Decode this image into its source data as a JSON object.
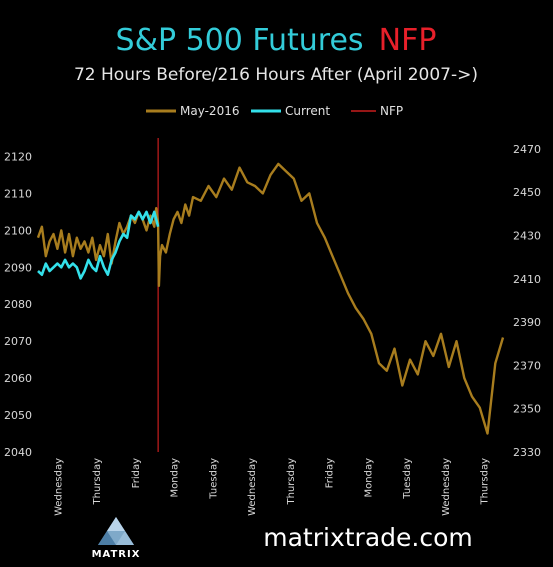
{
  "header": {
    "title_main": "S&P 500 Futures",
    "title_accent": "NFP",
    "subtitle": "72 Hours Before/216 Hours After (April 2007->)"
  },
  "footer": {
    "website": "matrixtrade.com",
    "brand": "MATRIX"
  },
  "colors": {
    "background": "#000000",
    "may2016": "#a87d1e",
    "current": "#33e0ea",
    "nfp": "#c81e1e",
    "title": "#33ccd9",
    "title_accent": "#e8202a"
  },
  "chart_data": {
    "type": "line",
    "title": "S&P 500 Futures NFP",
    "subtitle": "72 Hours Before/216 Hours After (April 2007->)",
    "legend": {
      "placement": "top",
      "entries": [
        "May-2016",
        "Current",
        "NFP"
      ]
    },
    "grid": false,
    "x_range": [
      0,
      12
    ],
    "x_tick_labels": [
      {
        "label": "Wednesday",
        "x": 0.5
      },
      {
        "label": "Thursday",
        "x": 1.5
      },
      {
        "label": "Friday",
        "x": 2.5
      },
      {
        "label": "Monday",
        "x": 3.5
      },
      {
        "label": "Tuesday",
        "x": 4.5
      },
      {
        "label": "Wednesday",
        "x": 5.5
      },
      {
        "label": "Thursday",
        "x": 6.5
      },
      {
        "label": "Friday",
        "x": 7.5
      },
      {
        "label": "Monday",
        "x": 8.5
      },
      {
        "label": "Tuesday",
        "x": 9.5
      },
      {
        "label": "Wednesday",
        "x": 10.5
      },
      {
        "label": "Thursday",
        "x": 11.5
      }
    ],
    "y_left": {
      "range": [
        2040,
        2125
      ],
      "ticks": [
        2040,
        2050,
        2060,
        2070,
        2080,
        2090,
        2100,
        2110,
        2120
      ]
    },
    "y_right": {
      "range": [
        2330,
        2475
      ],
      "ticks": [
        2330,
        2350,
        2370,
        2390,
        2410,
        2430,
        2450,
        2470
      ]
    },
    "nfp_x": 3.1,
    "series": [
      {
        "name": "May-2016",
        "axis": "left",
        "x": [
          0,
          0.1,
          0.2,
          0.3,
          0.4,
          0.5,
          0.6,
          0.7,
          0.8,
          0.9,
          1.0,
          1.1,
          1.2,
          1.3,
          1.4,
          1.5,
          1.6,
          1.7,
          1.8,
          1.9,
          2.0,
          2.1,
          2.2,
          2.3,
          2.4,
          2.5,
          2.6,
          2.7,
          2.8,
          2.9,
          3.0,
          3.05,
          3.1,
          3.12,
          3.15,
          3.2,
          3.3,
          3.4,
          3.5,
          3.6,
          3.7,
          3.8,
          3.9,
          4.0,
          4.2,
          4.4,
          4.6,
          4.8,
          5.0,
          5.2,
          5.4,
          5.6,
          5.8,
          6.0,
          6.2,
          6.4,
          6.6,
          6.8,
          7.0,
          7.2,
          7.4,
          7.6,
          7.8,
          8.0,
          8.2,
          8.4,
          8.6,
          8.8,
          9.0,
          9.2,
          9.4,
          9.6,
          9.8,
          10.0,
          10.2,
          10.4,
          10.6,
          10.8,
          11.0,
          11.2,
          11.4,
          11.6,
          11.8,
          12.0
        ],
        "y": [
          2098,
          2101,
          2093,
          2097,
          2099,
          2095,
          2100,
          2094,
          2099,
          2093,
          2098,
          2095,
          2097,
          2094,
          2098,
          2092,
          2096,
          2093,
          2099,
          2091,
          2097,
          2102,
          2099,
          2101,
          2104,
          2102,
          2105,
          2103,
          2100,
          2104,
          2101,
          2106,
          2102,
          2085,
          2093,
          2096,
          2094,
          2099,
          2103,
          2105,
          2102,
          2107,
          2104,
          2109,
          2108,
          2112,
          2109,
          2114,
          2111,
          2117,
          2113,
          2112,
          2110,
          2115,
          2118,
          2116,
          2114,
          2108,
          2110,
          2102,
          2098,
          2093,
          2088,
          2083,
          2079,
          2076,
          2072,
          2064,
          2062,
          2068,
          2058,
          2065,
          2061,
          2070,
          2066,
          2072,
          2063,
          2070,
          2060,
          2055,
          2052,
          2045,
          2064,
          2071
        ]
      },
      {
        "name": "Current",
        "axis": "left",
        "x": [
          0,
          0.1,
          0.2,
          0.3,
          0.4,
          0.5,
          0.6,
          0.7,
          0.8,
          0.9,
          1.0,
          1.1,
          1.2,
          1.3,
          1.4,
          1.5,
          1.6,
          1.7,
          1.8,
          1.9,
          2.0,
          2.1,
          2.2,
          2.3,
          2.4,
          2.5,
          2.6,
          2.7,
          2.8,
          2.9,
          3.0,
          3.1
        ],
        "y": [
          2089,
          2088,
          2091,
          2089,
          2090,
          2091,
          2090,
          2092,
          2090,
          2091,
          2090,
          2087,
          2089,
          2092,
          2090,
          2089,
          2093,
          2090,
          2088,
          2092,
          2094,
          2097,
          2099,
          2098,
          2104,
          2103,
          2105,
          2103,
          2105,
          2102,
          2105,
          2101
        ]
      }
    ]
  }
}
